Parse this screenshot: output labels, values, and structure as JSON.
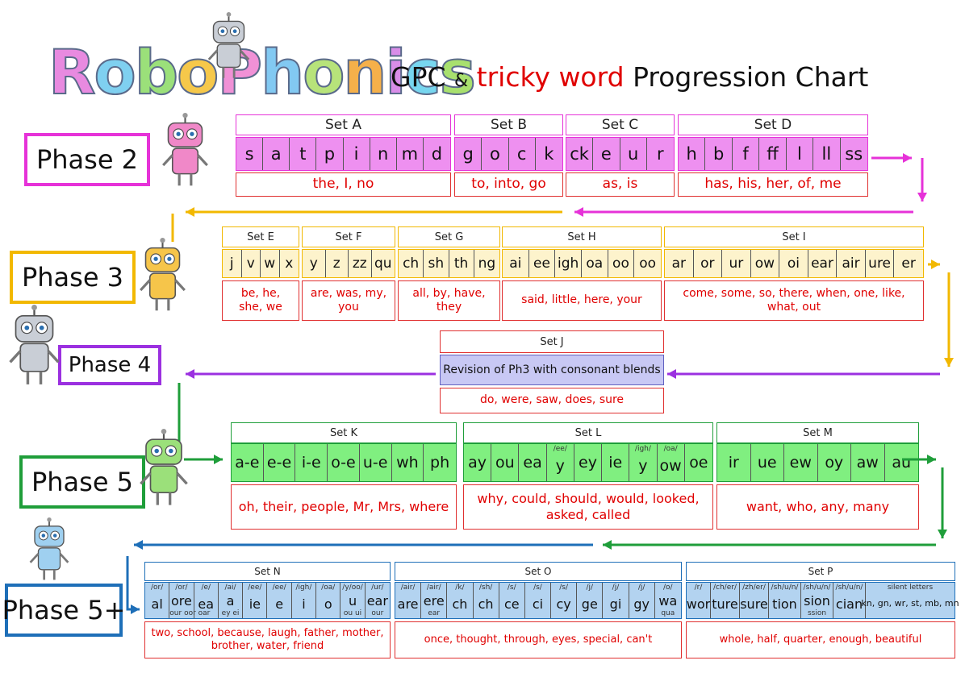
{
  "logo": {
    "text": [
      "R",
      "o",
      "b",
      "o",
      "P",
      "h",
      "o",
      "n",
      "i",
      "c",
      "s"
    ],
    "colors": [
      "#e88ae0",
      "#7fd0f0",
      "#9be07a",
      "#f6c84a",
      "#f091d6",
      "#82c9f2",
      "#b7e37a",
      "#f5b04a",
      "#d98de8",
      "#77d6ef",
      "#a8e06e"
    ]
  },
  "title": {
    "part1": "GPC",
    "amp": "&",
    "tricky": "tricky word",
    "part2": "Progression Chart"
  },
  "phases": [
    {
      "label": "Phase 2",
      "color": "#e632d8"
    },
    {
      "label": "Phase 3",
      "color": "#f2b800"
    },
    {
      "label": "Phase 4",
      "color": "#9b30e0"
    },
    {
      "label": "Phase 5",
      "color": "#1f9e3a"
    },
    {
      "label": "Phase 5+",
      "color": "#1e6fb8"
    }
  ],
  "phase2": {
    "color": "#e632d8",
    "fill": "#ee90f0",
    "sets": [
      {
        "name": "Set A",
        "graphemes": [
          "s",
          "a",
          "t",
          "p",
          "i",
          "n",
          "m",
          "d"
        ],
        "tricky": "the, I, no"
      },
      {
        "name": "Set B",
        "graphemes": [
          "g",
          "o",
          "c",
          "k"
        ],
        "tricky": "to, into, go"
      },
      {
        "name": "Set C",
        "graphemes": [
          "ck",
          "e",
          "u",
          "r"
        ],
        "tricky": "as, is"
      },
      {
        "name": "Set D",
        "graphemes": [
          "h",
          "b",
          "f",
          "ff",
          "l",
          "ll",
          "ss"
        ],
        "tricky": "has, his, her, of, me"
      }
    ]
  },
  "phase3": {
    "color": "#f2b800",
    "fill": "#fdf3cc",
    "sets": [
      {
        "name": "Set E",
        "graphemes": [
          "j",
          "v",
          "w",
          "x"
        ],
        "tricky": "be, he, she, we"
      },
      {
        "name": "Set F",
        "graphemes": [
          "y",
          "z",
          "zz",
          "qu"
        ],
        "tricky": "are, was, my, you"
      },
      {
        "name": "Set G",
        "graphemes": [
          "ch",
          "sh",
          "th",
          "ng"
        ],
        "tricky": "all, by, have, they"
      },
      {
        "name": "Set H",
        "graphemes": [
          "ai",
          "ee",
          "igh",
          "oa",
          "oo",
          "oo"
        ],
        "tricky": "said, little, here, your"
      },
      {
        "name": "Set I",
        "graphemes": [
          "ar",
          "or",
          "ur",
          "ow",
          "oi",
          "ear",
          "air",
          "ure",
          "er"
        ],
        "tricky": "come, some, so, there, when, one, like, what, out"
      }
    ]
  },
  "phase4": {
    "color": "#9b30e0",
    "fill": "#c8c8f4",
    "set": {
      "name": "Set J",
      "content": "Revision of Ph3 with consonant blends",
      "tricky": "do, were, saw, does, sure"
    }
  },
  "phase5": {
    "color": "#1f9e3a",
    "fill": "#80ef80",
    "sets": [
      {
        "name": "Set K",
        "graphemes": [
          {
            "g": "a-e"
          },
          {
            "g": "e-e"
          },
          {
            "g": "i-e"
          },
          {
            "g": "o-e"
          },
          {
            "g": "u-e"
          },
          {
            "g": "wh"
          },
          {
            "g": "ph"
          }
        ],
        "tricky": "oh, their, people, Mr, Mrs, where"
      },
      {
        "name": "Set L",
        "graphemes": [
          {
            "g": "ay"
          },
          {
            "g": "ou"
          },
          {
            "g": "ea"
          },
          {
            "g": "y",
            "sup": "/ee/"
          },
          {
            "g": "ey"
          },
          {
            "g": "ie"
          },
          {
            "g": "y",
            "sup": "/igh/"
          },
          {
            "g": "ow",
            "sup": "/oa/"
          },
          {
            "g": "oe"
          }
        ],
        "tricky": "why, could, should, would, looked, asked, called"
      },
      {
        "name": "Set M",
        "graphemes": [
          {
            "g": "ir"
          },
          {
            "g": "ue"
          },
          {
            "g": "ew"
          },
          {
            "g": "oy"
          },
          {
            "g": "aw"
          },
          {
            "g": "au"
          }
        ],
        "tricky": "want, who, any, many"
      }
    ]
  },
  "phase5plus": {
    "color": "#1e6fb8",
    "fill": "#b3d3f0",
    "sets": [
      {
        "name": "Set N",
        "graphemes": [
          {
            "sup": "/or/",
            "g": "al"
          },
          {
            "sup": "/or/",
            "g": "ore",
            "sub": "our oor oar"
          },
          {
            "sup": "/e/",
            "g": "ea"
          },
          {
            "sup": "/ai/",
            "g": "a",
            "sub": "ey ei"
          },
          {
            "sup": "/ee/",
            "g": "ie"
          },
          {
            "sup": "/ee/",
            "g": "e"
          },
          {
            "sup": "/igh/",
            "g": "i"
          },
          {
            "sup": "/oa/",
            "g": "o"
          },
          {
            "sup": "/y/oo/",
            "g": "u",
            "sub": "ou ui"
          },
          {
            "sup": "/ur/",
            "g": "ear",
            "sub": "our"
          }
        ],
        "tricky": "two, school, because, laugh, father, mother, brother, water, friend"
      },
      {
        "name": "Set O",
        "graphemes": [
          {
            "sup": "/air/",
            "g": "are"
          },
          {
            "sup": "/air/",
            "g": "ere",
            "sub": "ear"
          },
          {
            "sup": "/k/",
            "g": "ch"
          },
          {
            "sup": "/sh/",
            "g": "ch"
          },
          {
            "sup": "/s/",
            "g": "ce"
          },
          {
            "sup": "/s/",
            "g": "ci"
          },
          {
            "sup": "/s/",
            "g": "cy"
          },
          {
            "sup": "/j/",
            "g": "ge"
          },
          {
            "sup": "/j/",
            "g": "gi"
          },
          {
            "sup": "/j/",
            "g": "gy"
          },
          {
            "sup": "/o/",
            "g": "wa",
            "sub": "qua"
          }
        ],
        "tricky": "once, thought, through, eyes, special, can't"
      },
      {
        "name": "Set P",
        "graphemes": [
          {
            "sup": "/r/",
            "g": "wor"
          },
          {
            "sup": "/ch/er/",
            "g": "ture"
          },
          {
            "sup": "/zh/er/",
            "g": "sure"
          },
          {
            "sup": "/sh/u/n/",
            "g": "tion"
          },
          {
            "sup": "/sh/u/n/",
            "g": "sion",
            "sub": "ssion"
          },
          {
            "sup": "/sh/u/n/",
            "g": "cian"
          },
          {
            "sup": "silent letters",
            "g": "",
            "note": "kn, gn, wr, st, mb, mn"
          }
        ],
        "tricky": "whole, half, quarter, enough, beautiful"
      }
    ]
  }
}
